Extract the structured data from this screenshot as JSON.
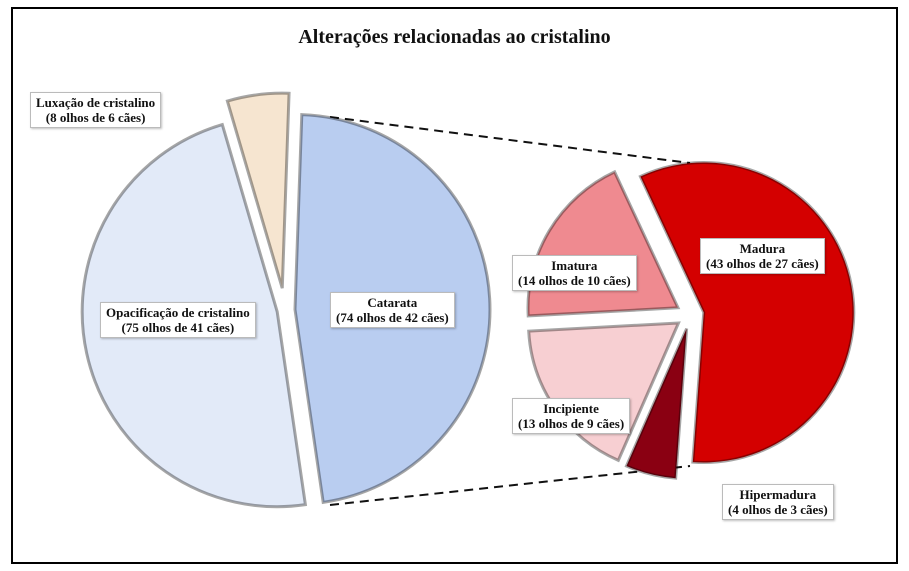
{
  "chart_data": [
    {
      "type": "pie",
      "title": "Alterações relacionadas ao cristalino",
      "categories": [
        "Catarata",
        "Opacificação de cristalino",
        "Luxação de cristalino"
      ],
      "values": [
        74,
        75,
        8
      ],
      "value_labels": [
        "(74 olhos de 42 cães)",
        "(75 olhos de 41 cães)",
        "(8 olhos de 6 cães)"
      ],
      "colors": [
        "#b9cdf0",
        "#e2eaf8",
        "#f6e5d0"
      ]
    },
    {
      "type": "pie",
      "categories": [
        "Madura",
        "Hipermadura",
        "Incipiente",
        "Imatura"
      ],
      "values": [
        43,
        4,
        13,
        14
      ],
      "value_labels": [
        "(43 olhos de 27 cães)",
        "(4 olhos de 3 cães)",
        "(13 olhos de 9 cães)",
        "(14 olhos de 10 cães)"
      ],
      "colors": [
        "#d40000",
        "#8a0012",
        "#f7cfd2",
        "#ef8a90"
      ]
    }
  ]
}
